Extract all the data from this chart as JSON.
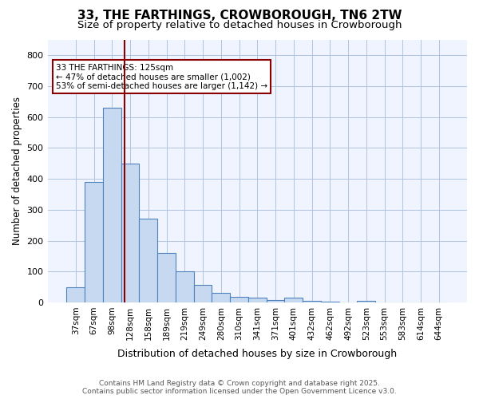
{
  "title1": "33, THE FARTHINGS, CROWBOROUGH, TN6 2TW",
  "title2": "Size of property relative to detached houses in Crowborough",
  "xlabel": "Distribution of detached houses by size in Crowborough",
  "ylabel": "Number of detached properties",
  "bar_labels": [
    "37sqm",
    "67sqm",
    "98sqm",
    "128sqm",
    "158sqm",
    "189sqm",
    "219sqm",
    "249sqm",
    "280sqm",
    "310sqm",
    "341sqm",
    "371sqm",
    "401sqm",
    "432sqm",
    "462sqm",
    "492sqm",
    "523sqm",
    "553sqm",
    "583sqm",
    "614sqm",
    "644sqm"
  ],
  "bar_heights": [
    50,
    390,
    630,
    450,
    270,
    160,
    100,
    57,
    30,
    17,
    14,
    7,
    14,
    5,
    2,
    0,
    5,
    0,
    0,
    0,
    0
  ],
  "bar_color": "#c6d9f0",
  "bar_edge_color": "#4f81bd",
  "property_line_x": 2.67,
  "property_line_color": "#8B0000",
  "annotation_text": "33 THE FARTHINGS: 125sqm\n← 47% of detached houses are smaller (1,002)\n53% of semi-detached houses are larger (1,142) →",
  "annotation_box_color": "#8B0000",
  "ylim": [
    0,
    850
  ],
  "yticks": [
    0,
    100,
    200,
    300,
    400,
    500,
    600,
    700,
    800
  ],
  "footnote": "Contains HM Land Registry data © Crown copyright and database right 2025.\nContains public sector information licensed under the Open Government Licence v3.0.",
  "bg_color": "#f0f4ff",
  "grid_color": "#b0c4de"
}
